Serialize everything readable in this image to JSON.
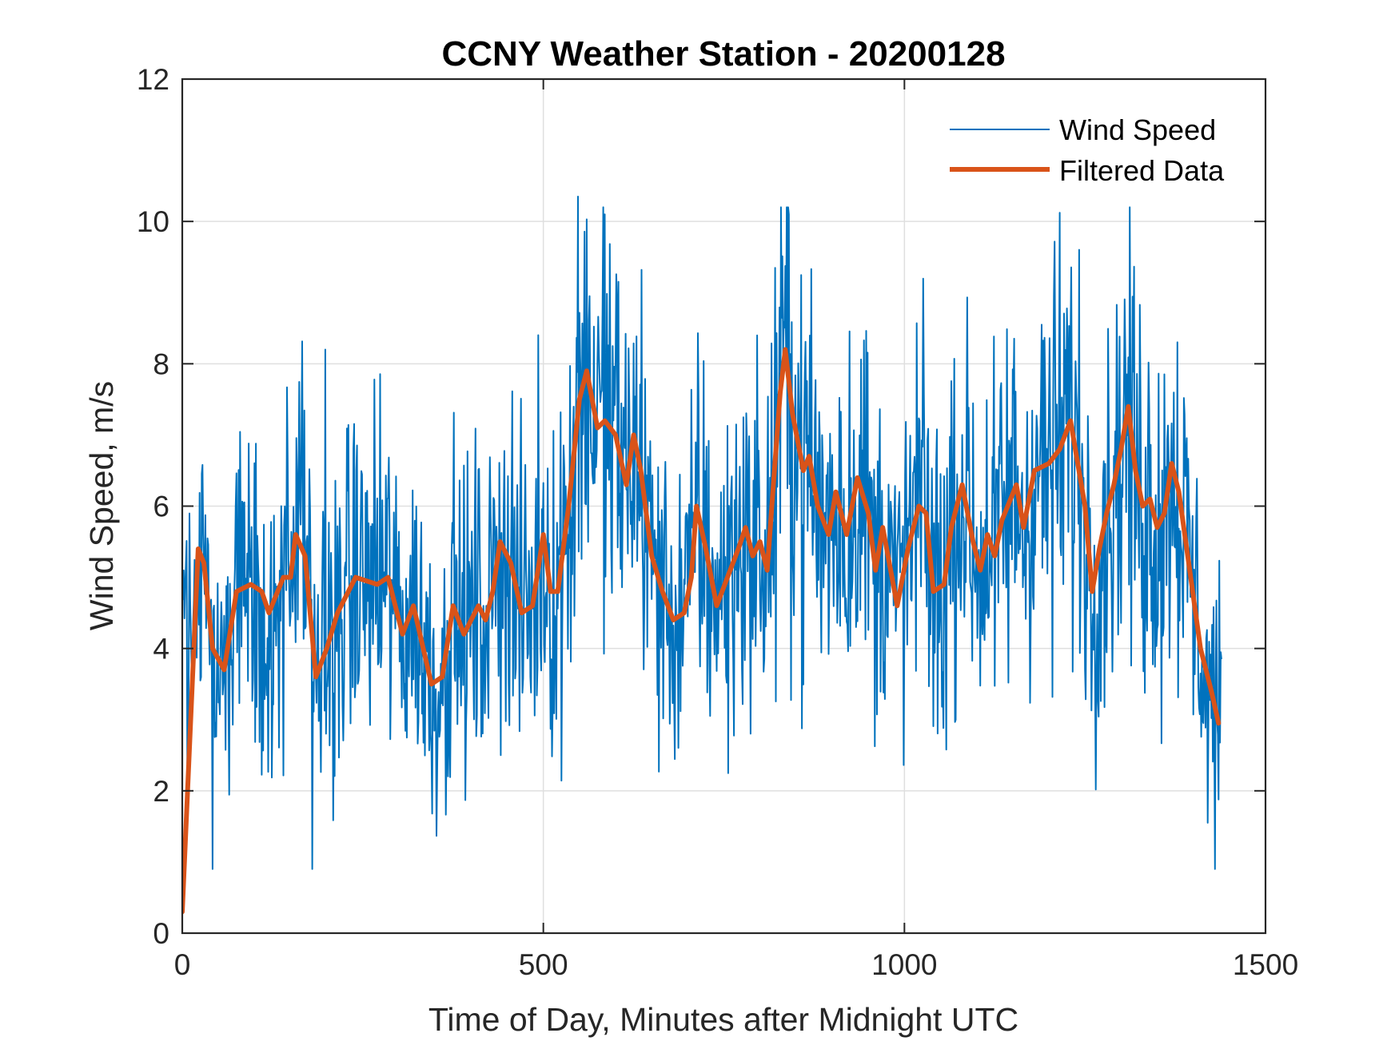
{
  "chart_data": {
    "type": "line",
    "title": "CCNY Weather Station - 20200128",
    "xlabel": "Time of Day, Minutes after Midnight UTC",
    "ylabel": "Wind Speed, m/s",
    "xlim": [
      0,
      1500
    ],
    "ylim": [
      0,
      12
    ],
    "xticks": [
      0,
      500,
      1000,
      1500
    ],
    "xtick_labels": [
      "0",
      "500",
      "1000",
      "1500"
    ],
    "yticks": [
      0,
      2,
      4,
      6,
      8,
      10,
      12
    ],
    "ytick_labels": [
      "0",
      "2",
      "4",
      "6",
      "8",
      "10",
      "12"
    ],
    "grid": true,
    "legend": {
      "placement": "top-right",
      "entries": [
        {
          "label": "Wind Speed",
          "color": "#0072BD",
          "style": "thin"
        },
        {
          "label": "Filtered Data",
          "color": "#D95319",
          "style": "thick"
        }
      ]
    },
    "series": [
      {
        "name": "Wind Speed",
        "color": "#0072BD",
        "description": "raw 1-minute samples, noisy around the filtered curve (amplitude roughly +/-2.5 m/s)",
        "x_range": [
          0,
          1439
        ],
        "notable_points": [
          {
            "x": 548,
            "y": 10.35
          },
          {
            "x": 585,
            "y": 10.1
          },
          {
            "x": 840,
            "y": 10.1
          },
          {
            "x": 198,
            "y": 8.2
          },
          {
            "x": 180,
            "y": 0.9
          },
          {
            "x": 42,
            "y": 0.9
          },
          {
            "x": 1420,
            "y": 1.55
          },
          {
            "x": 1439,
            "y": 3.85
          }
        ]
      },
      {
        "name": "Filtered Data",
        "color": "#D95319",
        "x": [
          0,
          22,
          30,
          42,
          58,
          75,
          95,
          110,
          120,
          140,
          150,
          157,
          170,
          185,
          200,
          215,
          240,
          270,
          285,
          305,
          320,
          345,
          360,
          375,
          390,
          410,
          420,
          430,
          440,
          455,
          470,
          485,
          500,
          510,
          520,
          535,
          550,
          560,
          575,
          585,
          600,
          615,
          625,
          635,
          650,
          665,
          680,
          695,
          705,
          712,
          725,
          740,
          755,
          770,
          780,
          790,
          800,
          810,
          820,
          828,
          835,
          845,
          860,
          868,
          880,
          895,
          905,
          920,
          935,
          950,
          960,
          970,
          990,
          1005,
          1020,
          1030,
          1040,
          1055,
          1065,
          1080,
          1095,
          1105,
          1115,
          1125,
          1135,
          1155,
          1165,
          1180,
          1200,
          1215,
          1230,
          1250,
          1260,
          1270,
          1280,
          1290,
          1300,
          1310,
          1320,
          1330,
          1340,
          1350,
          1360,
          1370,
          1380,
          1395,
          1410,
          1425,
          1435
        ],
        "y": [
          0.3,
          5.4,
          5.2,
          4.0,
          3.7,
          4.8,
          4.9,
          4.8,
          4.5,
          5.0,
          5.0,
          5.6,
          5.3,
          3.6,
          4.0,
          4.5,
          5.0,
          4.9,
          5.0,
          4.2,
          4.6,
          3.5,
          3.6,
          4.6,
          4.2,
          4.6,
          4.4,
          4.8,
          5.5,
          5.2,
          4.5,
          4.6,
          5.6,
          4.8,
          4.8,
          6.0,
          7.5,
          7.9,
          7.1,
          7.2,
          7.0,
          6.3,
          7.0,
          6.5,
          5.3,
          4.8,
          4.4,
          4.5,
          5.0,
          6.0,
          5.4,
          4.6,
          5.0,
          5.4,
          5.7,
          5.3,
          5.5,
          5.1,
          6.5,
          7.6,
          8.2,
          7.3,
          6.5,
          6.7,
          6.0,
          5.6,
          6.2,
          5.6,
          6.4,
          5.9,
          5.1,
          5.7,
          4.6,
          5.4,
          6.0,
          5.9,
          4.8,
          4.9,
          5.7,
          6.3,
          5.5,
          5.1,
          5.6,
          5.3,
          5.8,
          6.3,
          5.7,
          6.5,
          6.6,
          6.8,
          7.2,
          6.0,
          4.8,
          5.4,
          5.9,
          6.3,
          6.8,
          7.4,
          6.5,
          6.0,
          6.1,
          5.7,
          5.9,
          6.6,
          6.2,
          5.1,
          4.0,
          3.4,
          2.95
        ]
      }
    ]
  }
}
